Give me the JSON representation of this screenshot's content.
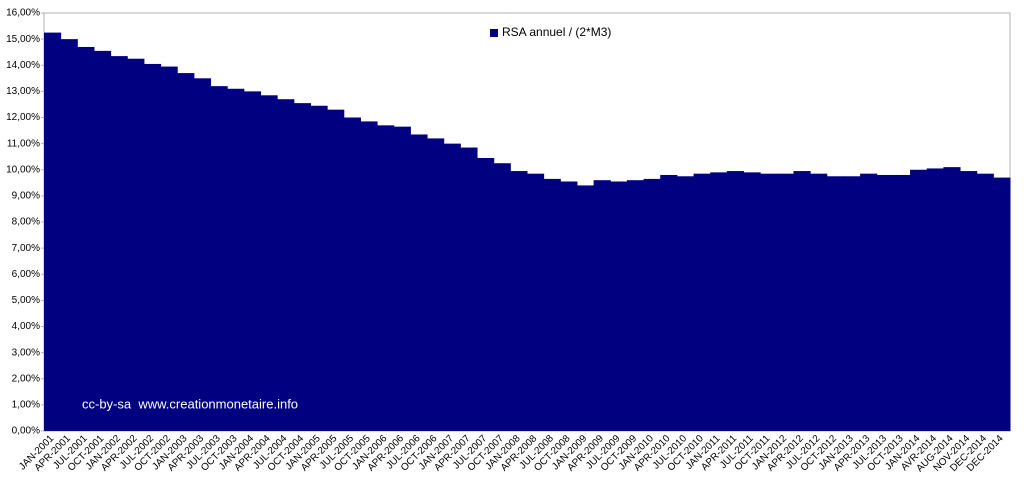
{
  "chart_data": {
    "type": "bar",
    "categories": [
      "JAN-2001",
      "APR-2001",
      "JUL-2001",
      "OCT-2001",
      "JAN-2002",
      "APR-2002",
      "JUL-2002",
      "OCT-2002",
      "JAN-2003",
      "APR-2003",
      "JUL-2003",
      "OCT-2003",
      "JAN-2004",
      "APR-2004",
      "JUL-2004",
      "OCT-2004",
      "JAN-2005",
      "APR-2005",
      "JUL-2005",
      "OCT-2005",
      "JAN-2006",
      "APR-2006",
      "JUL-2006",
      "OCT-2006",
      "JAN-2007",
      "APR-2007",
      "JUL-2007",
      "OCT-2007",
      "JAN-2008",
      "APR-2008",
      "JUL-2008",
      "OCT-2008",
      "JAN-2009",
      "APR-2009",
      "JUL-2009",
      "OCT-2009",
      "JAN-2010",
      "APR-2010",
      "JUL-2010",
      "OCT-2010",
      "JAN-2011",
      "APR-2011",
      "JUL-2011",
      "OCT-2011",
      "JAN-2012",
      "APR-2012",
      "JUL-2012",
      "OCT-2012",
      "JAN-2013",
      "APR-2013",
      "JUL-2013",
      "OCT-2013",
      "JAN-2014",
      "AVR-2014",
      "AUG-2014",
      "NOV-2014",
      "DEC-2014",
      "DEC-2014"
    ],
    "series": [
      {
        "name": "RSA annuel / (2*M3)",
        "color": "#000080",
        "values": [
          15.25,
          15.0,
          14.7,
          14.55,
          14.35,
          14.25,
          14.05,
          13.95,
          13.7,
          13.5,
          13.2,
          13.1,
          13.0,
          12.85,
          12.7,
          12.55,
          12.45,
          12.3,
          12.0,
          11.85,
          11.7,
          11.65,
          11.35,
          11.2,
          11.0,
          10.85,
          10.45,
          10.25,
          9.95,
          9.85,
          9.65,
          9.55,
          9.4,
          9.6,
          9.55,
          9.6,
          9.65,
          9.8,
          9.75,
          9.85,
          9.9,
          9.95,
          9.9,
          9.85,
          9.85,
          9.95,
          9.85,
          9.75,
          9.75,
          9.85,
          9.8,
          9.8,
          10.0,
          10.05,
          10.1,
          9.95,
          9.85,
          9.7
        ]
      }
    ],
    "ylim": [
      0,
      16
    ],
    "yticks": [
      {
        "value": 0,
        "label": "0,00%"
      },
      {
        "value": 1,
        "label": "1,00%"
      },
      {
        "value": 2,
        "label": "2,00%"
      },
      {
        "value": 3,
        "label": "3,00%"
      },
      {
        "value": 4,
        "label": "4,00%"
      },
      {
        "value": 5,
        "label": "5,00%"
      },
      {
        "value": 6,
        "label": "6,00%"
      },
      {
        "value": 7,
        "label": "7,00%"
      },
      {
        "value": 8,
        "label": "8,00%"
      },
      {
        "value": 9,
        "label": "9,00%"
      },
      {
        "value": 10,
        "label": "10,00%"
      },
      {
        "value": 11,
        "label": "11,00%"
      },
      {
        "value": 12,
        "label": "12,00%"
      },
      {
        "value": 13,
        "label": "13,00%"
      },
      {
        "value": 14,
        "label": "14,00%"
      },
      {
        "value": 15,
        "label": "15,00%"
      },
      {
        "value": 16,
        "label": "16,00%"
      }
    ],
    "annotation": "cc-by-sa  www.creationmonetaire.info"
  }
}
